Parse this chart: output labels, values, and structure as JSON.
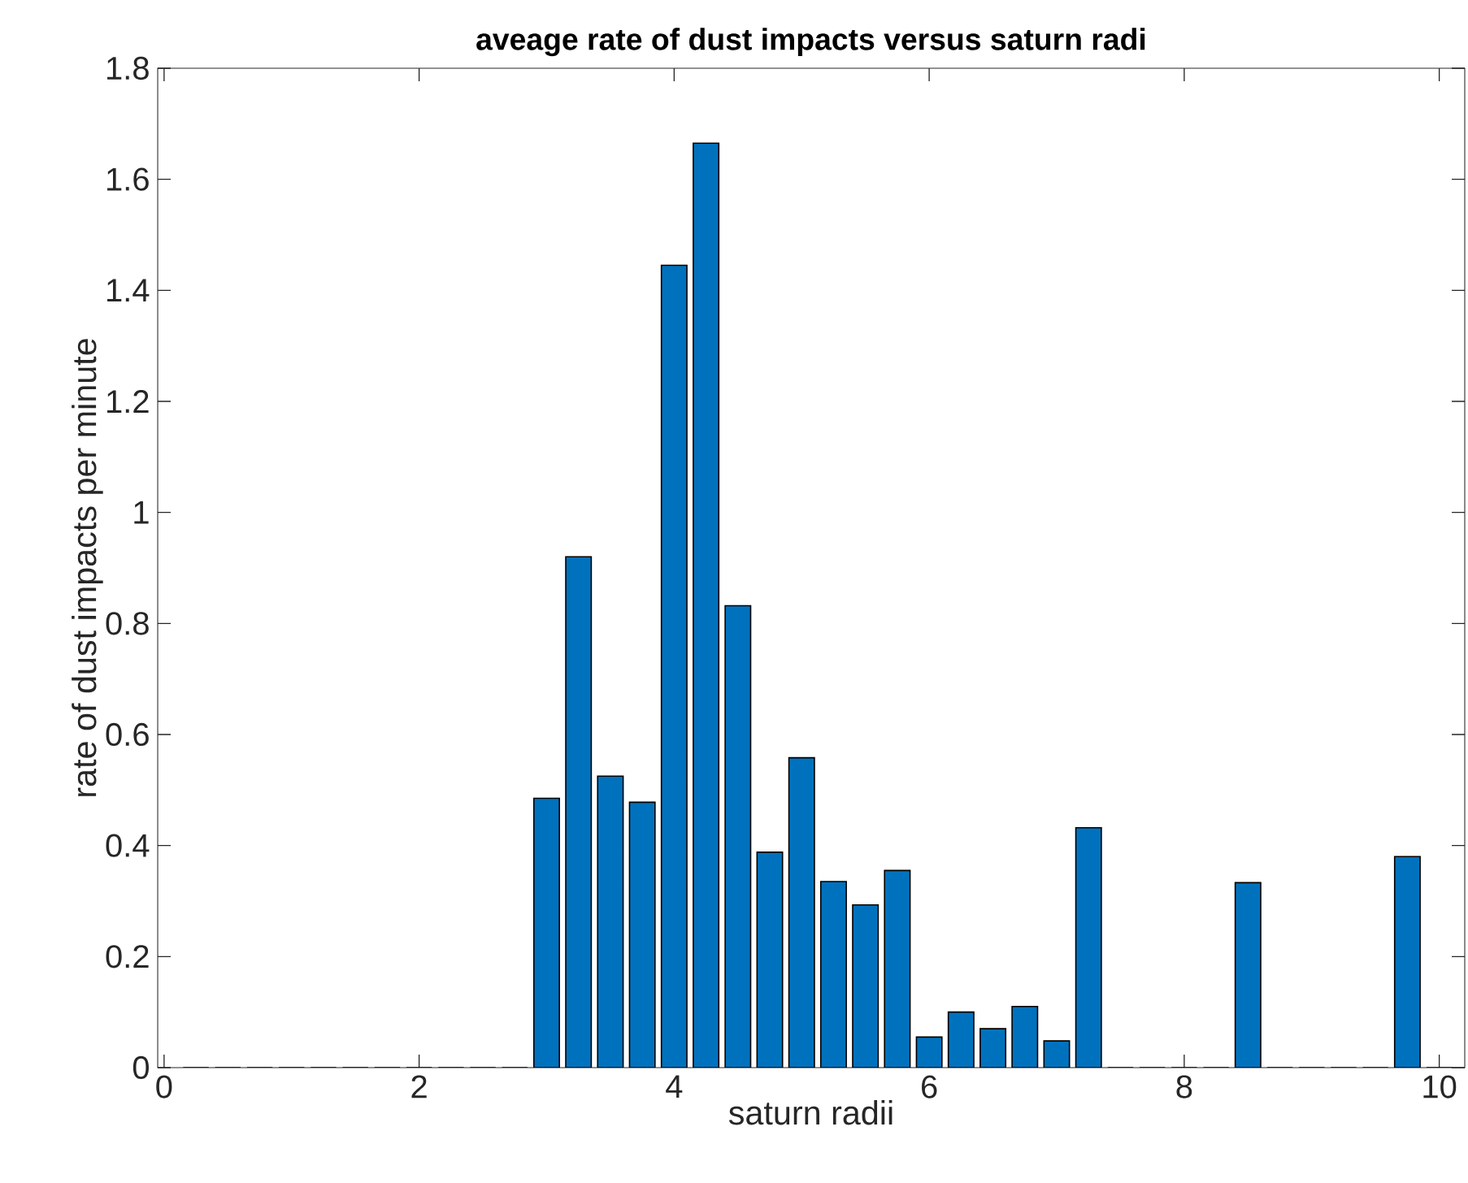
{
  "chart_data": {
    "type": "bar",
    "title": "aveage rate of dust impacts versus saturn radi",
    "xlabel": "saturn radii",
    "ylabel": "rate of dust impacts per minute",
    "color": "#0072bd",
    "x": [
      0.25,
      0.5,
      0.75,
      1,
      1.25,
      1.5,
      1.75,
      2,
      2.25,
      2.5,
      2.75,
      3,
      3.25,
      3.5,
      3.75,
      4,
      4.25,
      4.5,
      4.75,
      5,
      5.25,
      5.5,
      5.75,
      6,
      6.25,
      6.5,
      6.75,
      7,
      7.25,
      7.5,
      7.75,
      8,
      8.25,
      8.5,
      8.75,
      9,
      9.25,
      9.5,
      9.75,
      10
    ],
    "values": [
      0,
      0,
      0,
      0,
      0,
      0,
      0,
      0,
      0,
      0,
      0,
      0.485,
      0.92,
      0.525,
      0.478,
      1.445,
      1.665,
      0.832,
      0.388,
      0.558,
      0.335,
      0.293,
      0.355,
      0.055,
      0.1,
      0.07,
      0.11,
      0.048,
      0.432,
      0,
      0,
      0,
      0,
      0.333,
      0,
      0,
      0,
      0,
      0.38,
      0
    ],
    "xlim": [
      -0.05,
      10.2
    ],
    "ylim": [
      0,
      1.8
    ],
    "xticks": [
      0,
      2,
      4,
      6,
      8,
      10
    ],
    "yticks": [
      0,
      0.2,
      0.4,
      0.6,
      0.8,
      1,
      1.2,
      1.4,
      1.6,
      1.8
    ]
  }
}
